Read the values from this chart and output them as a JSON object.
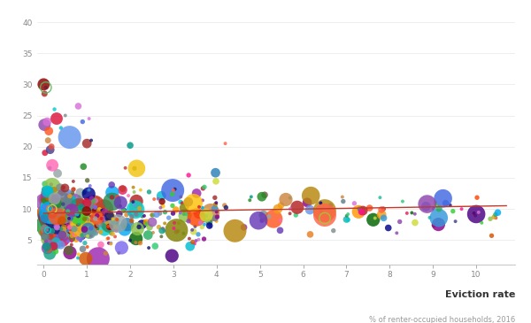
{
  "title": "",
  "xlabel_main": "Eviction rate",
  "xlabel_sub": "% of renter-occupied households, 2016",
  "ylabel": "",
  "xlim": [
    -0.15,
    10.9
  ],
  "ylim": [
    1,
    42
  ],
  "yticks": [
    5,
    10,
    15,
    20,
    25,
    30,
    35,
    40
  ],
  "xticks": [
    0,
    1,
    2,
    3,
    4,
    5,
    6,
    7,
    8,
    9,
    10
  ],
  "background_color": "#ffffff",
  "trend_color": "#c0392b",
  "trend_x": [
    0,
    10.7
  ],
  "trend_y": [
    9.3,
    10.5
  ],
  "n_points": 900,
  "seed": 99
}
